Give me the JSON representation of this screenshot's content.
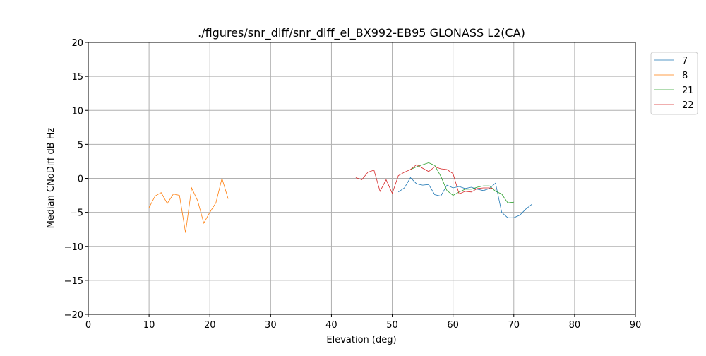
{
  "chart_data": {
    "type": "line",
    "title": "./figures/snr_diff/snr_diff_el_BX992-EB95 GLONASS  L2(CA)",
    "xlabel": "Elevation (deg)",
    "ylabel": "Median CNoDiff dB Hz",
    "xlim": [
      0,
      90
    ],
    "ylim": [
      -20,
      20
    ],
    "xticks": [
      0,
      10,
      20,
      30,
      40,
      50,
      60,
      70,
      80,
      90
    ],
    "yticks": [
      -20,
      -15,
      -10,
      -5,
      0,
      5,
      10,
      15,
      20
    ],
    "xtick_labels": [
      "0",
      "10",
      "20",
      "30",
      "40",
      "50",
      "60",
      "70",
      "80",
      "90"
    ],
    "ytick_labels": [
      "−20",
      "−15",
      "−10",
      "−5",
      "0",
      "5",
      "10",
      "15",
      "20"
    ],
    "grid": true,
    "legend_position": "outside-top-right",
    "series": [
      {
        "name": "7",
        "color": "#1f77b4",
        "x": [
          51,
          52,
          53,
          54,
          55,
          56,
          57,
          58,
          59,
          60,
          61,
          62,
          63,
          64,
          65,
          66,
          67,
          68,
          69,
          70,
          71,
          72,
          73
        ],
        "y": [
          -2.0,
          -1.4,
          0.1,
          -0.8,
          -1.0,
          -0.9,
          -2.4,
          -2.6,
          -1.0,
          -1.4,
          -1.2,
          -1.5,
          -1.3,
          -1.6,
          -1.8,
          -1.5,
          -0.7,
          -5.0,
          -5.8,
          -5.8,
          -5.4,
          -4.5,
          -3.8
        ]
      },
      {
        "name": "8",
        "color": "#ff7f0e",
        "x": [
          10,
          11,
          12,
          13,
          14,
          15,
          16,
          17,
          18,
          19,
          20,
          21,
          22,
          23
        ],
        "y": [
          -4.3,
          -2.6,
          -2.1,
          -3.7,
          -2.3,
          -2.5,
          -8.0,
          -1.4,
          -3.3,
          -6.6,
          -5.0,
          -3.6,
          0.0,
          -3.0
        ]
      },
      {
        "name": "21",
        "color": "#2ca02c",
        "x": [
          53,
          54,
          55,
          56,
          57,
          58,
          59,
          60,
          61,
          62,
          63,
          64,
          65,
          66,
          67,
          68,
          69,
          70
        ],
        "y": [
          1.3,
          1.7,
          2.0,
          2.3,
          1.9,
          0.3,
          -1.8,
          -2.5,
          -2.0,
          -1.6,
          -1.6,
          -1.3,
          -1.1,
          -1.1,
          -1.9,
          -2.3,
          -3.6,
          -3.5
        ]
      },
      {
        "name": "22",
        "color": "#d62728",
        "x": [
          44,
          45,
          46,
          47,
          48,
          49,
          50,
          51,
          52,
          53,
          54,
          55,
          56,
          57,
          58,
          59,
          60,
          61,
          62,
          63,
          64,
          65,
          66,
          67
        ],
        "y": [
          0.1,
          -0.2,
          0.9,
          1.2,
          -1.9,
          -0.2,
          -2.2,
          0.4,
          0.9,
          1.3,
          2.0,
          1.5,
          1.0,
          1.7,
          1.4,
          1.3,
          0.7,
          -2.3,
          -1.9,
          -2.0,
          -1.5,
          -1.4,
          -1.4,
          -1.6
        ]
      }
    ]
  }
}
